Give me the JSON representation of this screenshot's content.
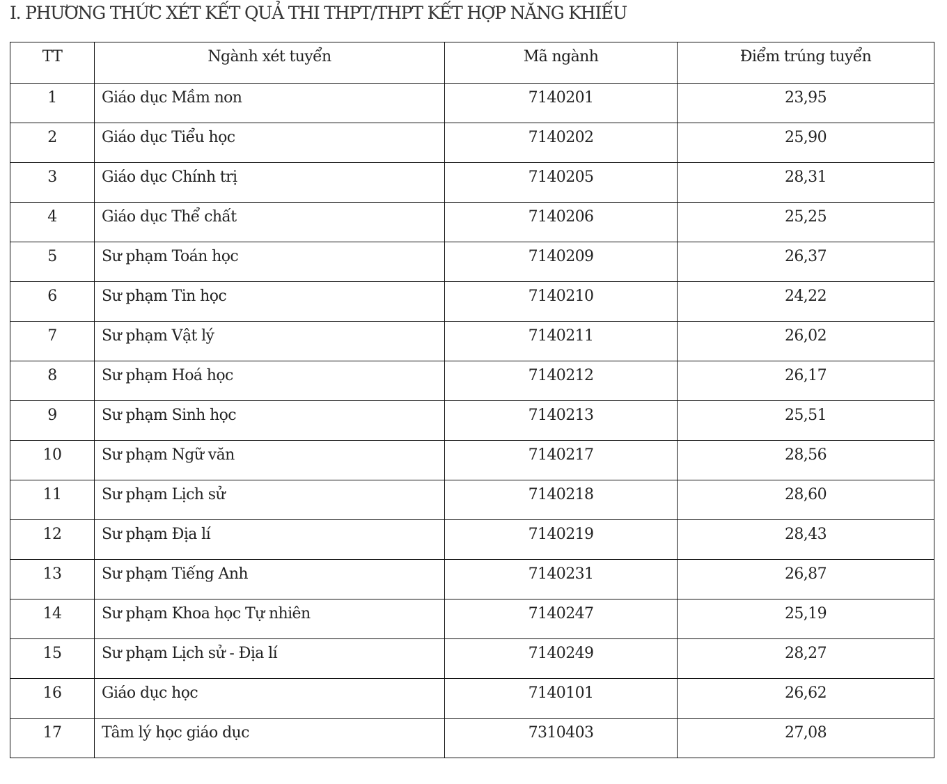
{
  "title": "I. PHƯƠNG THỨC XÉT KẾT QUẢ THI THPT/THPT KẾT HỢP NĂNG KHIẾU",
  "table": {
    "headers": [
      "TT",
      "Ngành xét tuyển",
      "Mã ngành",
      "Điểm trúng tuyển"
    ],
    "rows": [
      [
        "1",
        "Giáo dục Mầm non",
        "7140201",
        "23,95"
      ],
      [
        "2",
        "Giáo dục Tiểu học",
        "7140202",
        "25,90"
      ],
      [
        "3",
        "Giáo dục Chính trị",
        "7140205",
        "28,31"
      ],
      [
        "4",
        "Giáo dục Thể chất",
        "7140206",
        "25,25"
      ],
      [
        "5",
        "Sư phạm Toán học",
        "7140209",
        "26,37"
      ],
      [
        "6",
        "Sư phạm Tin học",
        "7140210",
        "24,22"
      ],
      [
        "7",
        "Sư phạm Vật lý",
        "7140211",
        "26,02"
      ],
      [
        "8",
        "Sư phạm Hoá học",
        "7140212",
        "26,17"
      ],
      [
        "9",
        "Sư phạm Sinh học",
        "7140213",
        "25,51"
      ],
      [
        "10",
        "Sư phạm Ngữ văn",
        "7140217",
        "28,56"
      ],
      [
        "11",
        "Sư phạm Lịch sử",
        "7140218",
        "28,60"
      ],
      [
        "12",
        "Sư phạm Địa lí",
        "7140219",
        "28,43"
      ],
      [
        "13",
        "Sư phạm Tiếng Anh",
        "7140231",
        "26,87"
      ],
      [
        "14",
        "Sư phạm Khoa học Tự nhiên",
        "7140247",
        "25,19"
      ],
      [
        "15",
        "Sư phạm Lịch sử - Địa lí",
        "7140249",
        "28,27"
      ],
      [
        "16",
        "Giáo dục học",
        "7140101",
        "26,62"
      ],
      [
        "17",
        "Tâm lý học giáo dục",
        "7310403",
        "27,08"
      ]
    ]
  }
}
